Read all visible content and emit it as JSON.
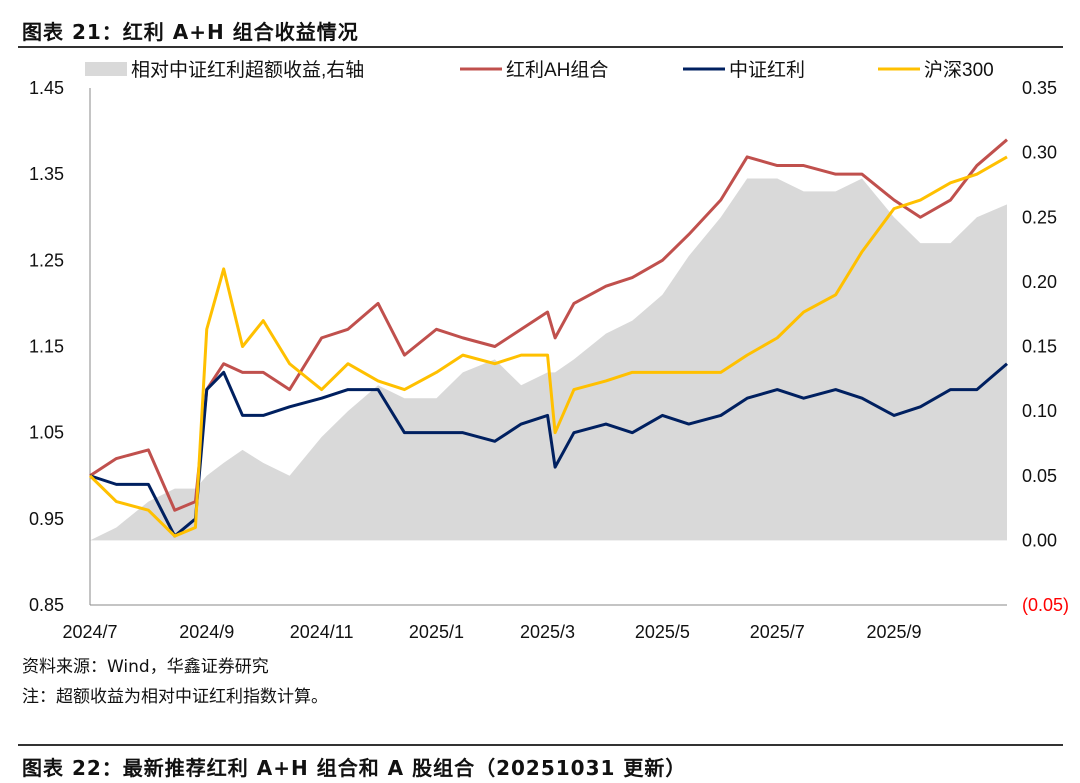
{
  "header": {
    "title": "图表 21：红利 A+H 组合收益情况"
  },
  "footer": {
    "source": "资料来源：Wind，华鑫证券研究",
    "note": "注：超额收益为相对中证红利指数计算。",
    "next_title": "图表 22：最新推荐红利 A+H 组合和 A 股组合（20251031 更新）"
  },
  "chart_data": {
    "type": "line",
    "x": [
      "2024-07-01",
      "2024-07-15",
      "2024-08-01",
      "2024-08-15",
      "2024-08-26",
      "2024-09-01",
      "2024-09-10",
      "2024-09-20",
      "2024-10-01",
      "2024-10-15",
      "2024-11-01",
      "2024-11-15",
      "2024-12-01",
      "2024-12-15",
      "2025-01-01",
      "2025-01-15",
      "2025-02-01",
      "2025-02-15",
      "2025-03-01",
      "2025-03-05",
      "2025-03-15",
      "2025-04-01",
      "2025-04-15",
      "2025-05-01",
      "2025-05-15",
      "2025-06-01",
      "2025-06-15",
      "2025-07-01",
      "2025-07-15",
      "2025-08-01",
      "2025-08-15",
      "2025-09-01",
      "2025-09-15",
      "2025-10-01",
      "2025-10-15",
      "2025-10-31"
    ],
    "series": [
      {
        "name": "相对中证红利超额收益,右轴",
        "type": "area",
        "axis": "right",
        "color": "#d9d9d9",
        "values": [
          0.0,
          0.01,
          0.03,
          0.04,
          0.04,
          0.05,
          0.06,
          0.07,
          0.06,
          0.05,
          0.08,
          0.1,
          0.12,
          0.11,
          0.11,
          0.13,
          0.14,
          0.12,
          0.13,
          0.13,
          0.14,
          0.16,
          0.17,
          0.19,
          0.22,
          0.25,
          0.28,
          0.28,
          0.27,
          0.27,
          0.28,
          0.25,
          0.23,
          0.23,
          0.25,
          0.26
        ]
      },
      {
        "name": "红利AH组合",
        "type": "line",
        "axis": "left",
        "color": "#c0504d",
        "values": [
          1.0,
          1.02,
          1.03,
          0.96,
          0.97,
          1.1,
          1.13,
          1.12,
          1.12,
          1.1,
          1.16,
          1.17,
          1.2,
          1.14,
          1.17,
          1.16,
          1.15,
          1.17,
          1.19,
          1.16,
          1.2,
          1.22,
          1.23,
          1.25,
          1.28,
          1.32,
          1.37,
          1.36,
          1.36,
          1.35,
          1.35,
          1.32,
          1.3,
          1.32,
          1.36,
          1.39
        ]
      },
      {
        "name": "中证红利",
        "type": "line",
        "axis": "left",
        "color": "#002060",
        "values": [
          1.0,
          0.99,
          0.99,
          0.93,
          0.95,
          1.1,
          1.12,
          1.07,
          1.07,
          1.08,
          1.09,
          1.1,
          1.1,
          1.05,
          1.05,
          1.05,
          1.04,
          1.06,
          1.07,
          1.01,
          1.05,
          1.06,
          1.05,
          1.07,
          1.06,
          1.07,
          1.09,
          1.1,
          1.09,
          1.1,
          1.09,
          1.07,
          1.08,
          1.1,
          1.1,
          1.13
        ]
      },
      {
        "name": "沪深300",
        "type": "line",
        "axis": "left",
        "color": "#ffc000",
        "values": [
          1.0,
          0.97,
          0.96,
          0.93,
          0.94,
          1.17,
          1.24,
          1.15,
          1.18,
          1.13,
          1.1,
          1.13,
          1.11,
          1.1,
          1.12,
          1.14,
          1.13,
          1.14,
          1.14,
          1.05,
          1.1,
          1.11,
          1.12,
          1.12,
          1.12,
          1.12,
          1.14,
          1.16,
          1.19,
          1.21,
          1.26,
          1.31,
          1.32,
          1.34,
          1.35,
          1.37
        ]
      }
    ],
    "x_ticks": [
      "2024/7",
      "2024/9",
      "2024/11",
      "2025/1",
      "2025/3",
      "2025/5",
      "2025/7",
      "2025/9"
    ],
    "x_tick_dates": [
      "2024-07-01",
      "2024-09-01",
      "2024-11-01",
      "2025-01-01",
      "2025-03-01",
      "2025-05-01",
      "2025-07-01",
      "2025-09-01"
    ],
    "y_left": {
      "range": [
        0.85,
        1.45
      ],
      "ticks": [
        "0.85",
        "0.95",
        "1.05",
        "1.15",
        "1.25",
        "1.35",
        "1.45"
      ]
    },
    "y_right": {
      "range": [
        -0.05,
        0.35
      ],
      "ticks": [
        "(0.05)",
        "0.00",
        "0.05",
        "0.10",
        "0.15",
        "0.20",
        "0.25",
        "0.30",
        "0.35"
      ],
      "negative_color": "#ff0000"
    },
    "grid": false,
    "legend": "top"
  }
}
